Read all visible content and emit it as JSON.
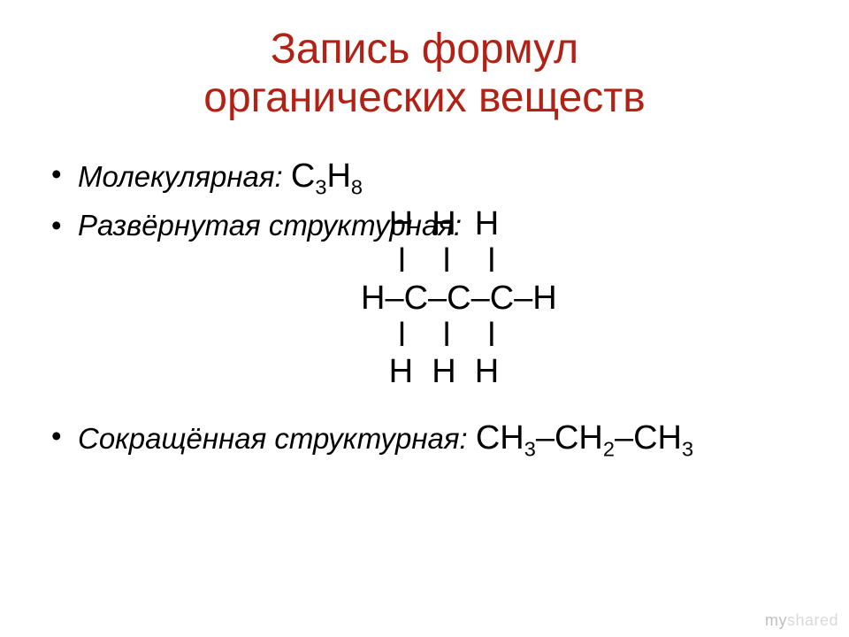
{
  "title_color": "#b22115",
  "text_color": "#000000",
  "background_color": "#ffffff",
  "title": {
    "line1": "Запись формул",
    "line2": "органических веществ"
  },
  "items": {
    "molecular": {
      "label": "Молекулярная:",
      "formula_base1": "С",
      "formula_sub1": "3",
      "formula_base2": "Н",
      "formula_sub2": "8"
    },
    "structural": {
      "label": "Развёрнутая структурная:",
      "rows": {
        "r1": "   Н  Н  Н",
        "r2": "    ӏ    ӏ    ӏ",
        "r3": "Н–С–С–С–Н",
        "r4": "    ӏ    ӏ    ӏ",
        "r5": "   Н  Н  Н"
      }
    },
    "condensed": {
      "label": "Сокращённая структурная:",
      "p1_base": "СН",
      "p1_sub": "3",
      "dash1": "–",
      "p2_base": "СН",
      "p2_sub": "2",
      "dash2": "–",
      "p3_base": "СН",
      "p3_sub": "3"
    }
  },
  "watermark": {
    "part1": "my",
    "part2": "shared"
  }
}
